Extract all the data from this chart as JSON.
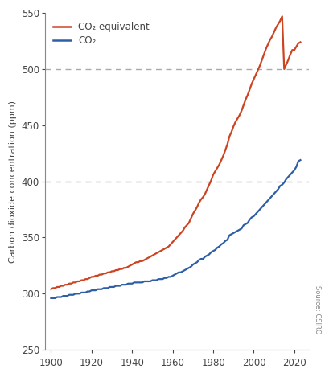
{
  "title": "",
  "ylabel": "Carbon dioxide concentration (ppm)",
  "xlabel": "",
  "xlim": [
    1897,
    2027
  ],
  "ylim": [
    250,
    550
  ],
  "yticks": [
    250,
    300,
    350,
    400,
    450,
    500,
    550
  ],
  "xticks": [
    1900,
    1920,
    1940,
    1960,
    1980,
    2000,
    2020
  ],
  "co2_color": "#2e5ea6",
  "co2eq_color": "#cc4422",
  "hline_color": "#aaaaaa",
  "hline_co2_y": 400,
  "hline_co2eq_y": 500,
  "source_text": "Source: CSIRO",
  "legend_co2eq": "CO₂ equivalent",
  "legend_co2": "CO₂",
  "background_color": "#ffffff",
  "years_co2": [
    1900,
    1901,
    1902,
    1903,
    1904,
    1905,
    1906,
    1907,
    1908,
    1909,
    1910,
    1911,
    1912,
    1913,
    1914,
    1915,
    1916,
    1917,
    1918,
    1919,
    1920,
    1921,
    1922,
    1923,
    1924,
    1925,
    1926,
    1927,
    1928,
    1929,
    1930,
    1931,
    1932,
    1933,
    1934,
    1935,
    1936,
    1937,
    1938,
    1939,
    1940,
    1941,
    1942,
    1943,
    1944,
    1945,
    1946,
    1947,
    1948,
    1949,
    1950,
    1951,
    1952,
    1953,
    1954,
    1955,
    1956,
    1957,
    1958,
    1959,
    1960,
    1961,
    1962,
    1963,
    1964,
    1965,
    1966,
    1967,
    1968,
    1969,
    1970,
    1971,
    1972,
    1973,
    1974,
    1975,
    1976,
    1977,
    1978,
    1979,
    1980,
    1981,
    1982,
    1983,
    1984,
    1985,
    1986,
    1987,
    1988,
    1989,
    1990,
    1991,
    1992,
    1993,
    1994,
    1995,
    1996,
    1997,
    1998,
    1999,
    2000,
    2001,
    2002,
    2003,
    2004,
    2005,
    2006,
    2007,
    2008,
    2009,
    2010,
    2011,
    2012,
    2013,
    2014,
    2015,
    2016,
    2017,
    2018,
    2019,
    2020,
    2021,
    2022,
    2023
  ],
  "values_co2": [
    296,
    296,
    296,
    297,
    297,
    297,
    298,
    298,
    298,
    299,
    299,
    299,
    300,
    300,
    300,
    301,
    301,
    301,
    302,
    302,
    303,
    303,
    303,
    304,
    304,
    304,
    305,
    305,
    305,
    306,
    306,
    306,
    307,
    307,
    307,
    308,
    308,
    308,
    309,
    309,
    309,
    310,
    310,
    310,
    310,
    310,
    311,
    311,
    311,
    311,
    312,
    312,
    312,
    313,
    313,
    313,
    314,
    314,
    315,
    315,
    316,
    317,
    318,
    319,
    319,
    320,
    321,
    322,
    323,
    324,
    326,
    327,
    328,
    330,
    331,
    331,
    333,
    334,
    335,
    337,
    338,
    339,
    341,
    342,
    344,
    345,
    347,
    348,
    352,
    353,
    354,
    355,
    356,
    357,
    358,
    361,
    362,
    363,
    366,
    368,
    369,
    371,
    373,
    375,
    377,
    379,
    381,
    383,
    385,
    387,
    389,
    391,
    393,
    396,
    397,
    399,
    402,
    404,
    406,
    408,
    410,
    413,
    418,
    419
  ],
  "years_co2eq": [
    1900,
    1901,
    1902,
    1903,
    1904,
    1905,
    1906,
    1907,
    1908,
    1909,
    1910,
    1911,
    1912,
    1913,
    1914,
    1915,
    1916,
    1917,
    1918,
    1919,
    1920,
    1921,
    1922,
    1923,
    1924,
    1925,
    1926,
    1927,
    1928,
    1929,
    1930,
    1931,
    1932,
    1933,
    1934,
    1935,
    1936,
    1937,
    1938,
    1939,
    1940,
    1941,
    1942,
    1943,
    1944,
    1945,
    1946,
    1947,
    1948,
    1949,
    1950,
    1951,
    1952,
    1953,
    1954,
    1955,
    1956,
    1957,
    1958,
    1959,
    1960,
    1961,
    1962,
    1963,
    1964,
    1965,
    1966,
    1967,
    1968,
    1969,
    1970,
    1971,
    1972,
    1973,
    1974,
    1975,
    1976,
    1977,
    1978,
    1979,
    1980,
    1981,
    1982,
    1983,
    1984,
    1985,
    1986,
    1987,
    1988,
    1989,
    1990,
    1991,
    1992,
    1993,
    1994,
    1995,
    1996,
    1997,
    1998,
    1999,
    2000,
    2001,
    2002,
    2003,
    2004,
    2005,
    2006,
    2007,
    2008,
    2009,
    2010,
    2011,
    2012,
    2013,
    2014,
    2015,
    2016,
    2017,
    2018,
    2019,
    2020,
    2021,
    2022,
    2023
  ],
  "values_co2eq": [
    304,
    305,
    305,
    306,
    306,
    307,
    307,
    308,
    308,
    309,
    309,
    310,
    310,
    311,
    311,
    312,
    312,
    313,
    313,
    314,
    315,
    315,
    316,
    316,
    317,
    317,
    318,
    318,
    319,
    319,
    320,
    320,
    321,
    321,
    322,
    322,
    323,
    323,
    324,
    325,
    326,
    327,
    328,
    328,
    329,
    329,
    330,
    331,
    332,
    333,
    334,
    335,
    336,
    337,
    338,
    339,
    340,
    341,
    342,
    344,
    346,
    348,
    350,
    352,
    354,
    356,
    359,
    361,
    363,
    367,
    371,
    374,
    377,
    381,
    384,
    386,
    389,
    393,
    397,
    401,
    406,
    409,
    412,
    415,
    419,
    423,
    428,
    433,
    440,
    444,
    449,
    453,
    456,
    459,
    463,
    468,
    473,
    477,
    482,
    487,
    491,
    495,
    499,
    503,
    508,
    513,
    518,
    522,
    526,
    529,
    533,
    537,
    540,
    543,
    547,
    500,
    504,
    508,
    513,
    517,
    517,
    520,
    523,
    524
  ]
}
